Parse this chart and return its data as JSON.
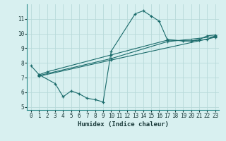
{
  "xlabel": "Humidex (Indice chaleur)",
  "bg_color": "#d8f0f0",
  "grid_color": "#b8dada",
  "line_color": "#1a6b6b",
  "xlim": [
    -0.5,
    23.5
  ],
  "ylim": [
    4.8,
    12.0
  ],
  "yticks": [
    5,
    6,
    7,
    8,
    9,
    10,
    11
  ],
  "xticks": [
    0,
    1,
    2,
    3,
    4,
    5,
    6,
    7,
    8,
    9,
    10,
    11,
    12,
    13,
    14,
    15,
    16,
    17,
    18,
    19,
    20,
    21,
    22,
    23
  ],
  "line1_x": [
    0,
    1,
    3,
    4,
    5,
    6,
    7,
    8,
    9,
    10,
    13,
    14,
    15,
    16,
    17,
    19,
    20,
    21,
    22,
    23
  ],
  "line1_y": [
    7.8,
    7.2,
    6.6,
    5.7,
    6.1,
    5.9,
    5.6,
    5.5,
    5.35,
    8.8,
    11.35,
    11.55,
    11.2,
    10.85,
    9.6,
    9.5,
    9.5,
    9.6,
    9.85,
    9.9
  ],
  "line2_x": [
    1,
    2,
    10,
    17,
    20,
    21,
    22,
    23
  ],
  "line2_y": [
    7.2,
    7.4,
    8.55,
    9.55,
    9.5,
    9.55,
    9.6,
    9.85
  ],
  "line3_x": [
    1,
    10,
    17,
    23
  ],
  "line3_y": [
    7.15,
    8.3,
    9.45,
    9.8
  ],
  "line4_x": [
    1,
    10,
    23
  ],
  "line4_y": [
    7.1,
    8.2,
    9.75
  ]
}
